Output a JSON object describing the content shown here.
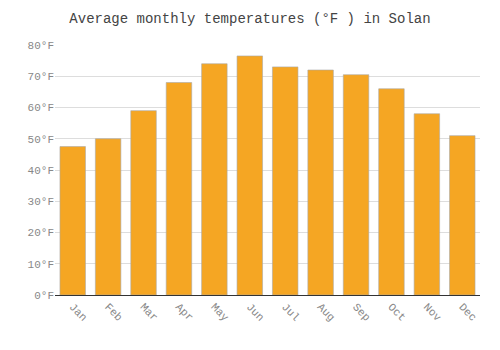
{
  "chart_data": {
    "type": "bar",
    "title": "Average monthly temperatures (°F ) in Solan",
    "categories": [
      "Jan",
      "Feb",
      "Mar",
      "Apr",
      "May",
      "Jun",
      "Jul",
      "Aug",
      "Sep",
      "Oct",
      "Nov",
      "Dec"
    ],
    "values": [
      47.5,
      50.0,
      59.0,
      68.0,
      74.0,
      76.5,
      73.0,
      72.0,
      70.5,
      66.0,
      58.0,
      51.0
    ],
    "color": "#F5A623",
    "ylim": [
      0,
      80
    ],
    "yticks": [
      {
        "value": 0,
        "label": "0°F"
      },
      {
        "value": 10,
        "label": "10°F"
      },
      {
        "value": 20,
        "label": "20°F"
      },
      {
        "value": 30,
        "label": "30°F"
      },
      {
        "value": 40,
        "label": "40°F"
      },
      {
        "value": 50,
        "label": "50°F"
      },
      {
        "value": 60,
        "label": "60°F"
      },
      {
        "value": 70,
        "label": "70°F"
      },
      {
        "value": 80,
        "label": "80°F"
      }
    ],
    "grid": true
  }
}
